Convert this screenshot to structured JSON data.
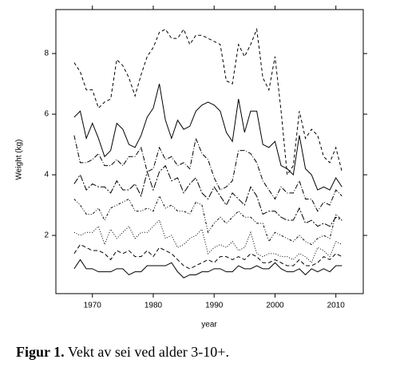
{
  "chart_data": {
    "type": "line",
    "xlabel": "year",
    "ylabel": "Weight (kg)",
    "x": [
      1967,
      1968,
      1969,
      1970,
      1971,
      1972,
      1973,
      1974,
      1975,
      1976,
      1977,
      1978,
      1979,
      1980,
      1981,
      1982,
      1983,
      1984,
      1985,
      1986,
      1987,
      1988,
      1989,
      1990,
      1991,
      1992,
      1993,
      1994,
      1995,
      1996,
      1997,
      1998,
      1999,
      2000,
      2001,
      2002,
      2003,
      2004,
      2005,
      2006,
      2007,
      2008,
      2009,
      2010,
      2011
    ],
    "xlim": [
      1964,
      2014.5
    ],
    "xticks": [
      1970,
      1980,
      1990,
      2000,
      2010
    ],
    "ylim": [
      0.08,
      9.45
    ],
    "yticks": [
      2,
      4,
      6,
      8
    ],
    "series": [
      {
        "color": "#000000",
        "dash": "4 3",
        "values": [
          7.7,
          7.4,
          6.8,
          6.8,
          6.2,
          6.4,
          6.5,
          7.8,
          7.6,
          7.2,
          6.6,
          7.3,
          7.9,
          8.2,
          8.7,
          8.8,
          8.5,
          8.5,
          8.8,
          8.3,
          8.6,
          8.6,
          8.5,
          8.4,
          8.3,
          7.1,
          7.0,
          8.3,
          7.9,
          8.3,
          8.8,
          7.2,
          6.8,
          7.9,
          6.1,
          4.0,
          4.3,
          6.1,
          5.2,
          5.5,
          5.3,
          4.6,
          4.4,
          4.9,
          4.1
        ]
      },
      {
        "color": "#000000",
        "dash": "none",
        "values": [
          5.9,
          6.1,
          5.2,
          5.7,
          5.2,
          4.6,
          4.8,
          5.7,
          5.5,
          5.0,
          4.9,
          5.3,
          5.9,
          6.2,
          7.0,
          5.8,
          5.2,
          5.8,
          5.5,
          5.6,
          6.1,
          6.3,
          6.4,
          6.3,
          6.1,
          5.4,
          5.1,
          6.5,
          5.4,
          6.1,
          6.1,
          5.0,
          4.9,
          5.1,
          4.3,
          4.2,
          4.0,
          5.3,
          4.2,
          4.0,
          3.5,
          3.6,
          3.5,
          3.9,
          3.6
        ]
      },
      {
        "color": "#000000",
        "dash": "6 2 1 2",
        "values": [
          5.3,
          4.4,
          4.4,
          4.5,
          4.7,
          4.3,
          4.3,
          4.5,
          4.3,
          4.6,
          4.6,
          4.9,
          4.1,
          4.2,
          4.9,
          4.5,
          4.6,
          4.3,
          4.4,
          4.2,
          5.2,
          4.7,
          4.5,
          3.9,
          3.5,
          3.6,
          3.8,
          4.8,
          4.8,
          4.7,
          4.4,
          3.8,
          3.5,
          3.2,
          3.6,
          3.4,
          3.4,
          3.8,
          3.2,
          3.2,
          2.8,
          3.1,
          3.0,
          3.5,
          3.3
        ]
      },
      {
        "color": "#000000",
        "dash": "8 2 2 2",
        "values": [
          3.7,
          4.0,
          3.5,
          3.7,
          3.6,
          3.6,
          3.4,
          3.8,
          3.5,
          3.5,
          3.7,
          3.3,
          4.1,
          3.5,
          4.1,
          4.3,
          3.8,
          3.9,
          3.4,
          3.7,
          3.9,
          3.4,
          3.2,
          3.6,
          3.3,
          3.0,
          3.4,
          3.2,
          3.0,
          3.6,
          3.3,
          2.7,
          2.8,
          2.8,
          2.6,
          2.5,
          2.5,
          2.9,
          2.4,
          2.5,
          2.3,
          2.4,
          2.3,
          2.6,
          2.5
        ]
      },
      {
        "color": "#000000",
        "dash": "3 2 1 2 1 2",
        "values": [
          3.2,
          3.0,
          2.7,
          2.7,
          2.9,
          2.5,
          2.9,
          3.0,
          3.1,
          3.2,
          2.8,
          2.8,
          2.9,
          2.8,
          3.3,
          2.9,
          3.0,
          2.8,
          2.8,
          2.7,
          3.1,
          3.0,
          2.1,
          2.4,
          2.6,
          2.4,
          2.6,
          2.8,
          2.6,
          2.6,
          2.4,
          2.4,
          1.8,
          2.1,
          2.0,
          1.9,
          1.8,
          2.0,
          1.8,
          1.7,
          1.9,
          2.0,
          1.9,
          2.7,
          2.5
        ]
      },
      {
        "color": "#000000",
        "dash": "1 2",
        "values": [
          2.1,
          2.0,
          2.1,
          2.1,
          2.3,
          1.7,
          2.2,
          1.9,
          2.1,
          2.3,
          1.9,
          2.1,
          2.1,
          2.3,
          2.5,
          1.9,
          2.0,
          1.6,
          1.7,
          1.9,
          2.0,
          2.2,
          1.4,
          1.6,
          1.7,
          1.6,
          1.8,
          1.5,
          1.6,
          2.1,
          1.4,
          1.3,
          1.4,
          1.4,
          1.3,
          1.3,
          1.2,
          1.4,
          1.3,
          1.1,
          1.6,
          1.5,
          1.3,
          1.8,
          1.7
        ]
      },
      {
        "color": "#000000",
        "dash": "5 3",
        "values": [
          1.4,
          1.7,
          1.6,
          1.5,
          1.5,
          1.4,
          1.2,
          1.5,
          1.4,
          1.5,
          1.3,
          1.3,
          1.5,
          1.3,
          1.6,
          1.5,
          1.4,
          1.2,
          1.0,
          0.9,
          1.0,
          1.1,
          1.2,
          1.1,
          1.3,
          1.3,
          1.2,
          1.3,
          1.2,
          1.4,
          1.3,
          1.1,
          1.1,
          1.2,
          1.1,
          1.0,
          1.0,
          1.2,
          1.0,
          1.0,
          1.1,
          1.3,
          1.2,
          1.4,
          1.3
        ]
      },
      {
        "color": "#000000",
        "dash": "none",
        "values": [
          0.9,
          1.2,
          0.9,
          0.9,
          0.8,
          0.8,
          0.8,
          0.9,
          0.9,
          0.7,
          0.8,
          0.8,
          1.0,
          1.0,
          1.0,
          1.0,
          1.1,
          0.8,
          0.6,
          0.7,
          0.7,
          0.8,
          0.8,
          0.9,
          0.9,
          0.8,
          0.8,
          1.0,
          0.9,
          0.9,
          1.0,
          0.9,
          0.9,
          1.1,
          0.9,
          0.8,
          0.8,
          0.9,
          0.7,
          0.9,
          0.8,
          0.9,
          0.8,
          1.0,
          1.0
        ]
      }
    ]
  },
  "caption": {
    "label": "Figur 1.",
    "text": "Vekt av sei ved alder 3-10+."
  }
}
